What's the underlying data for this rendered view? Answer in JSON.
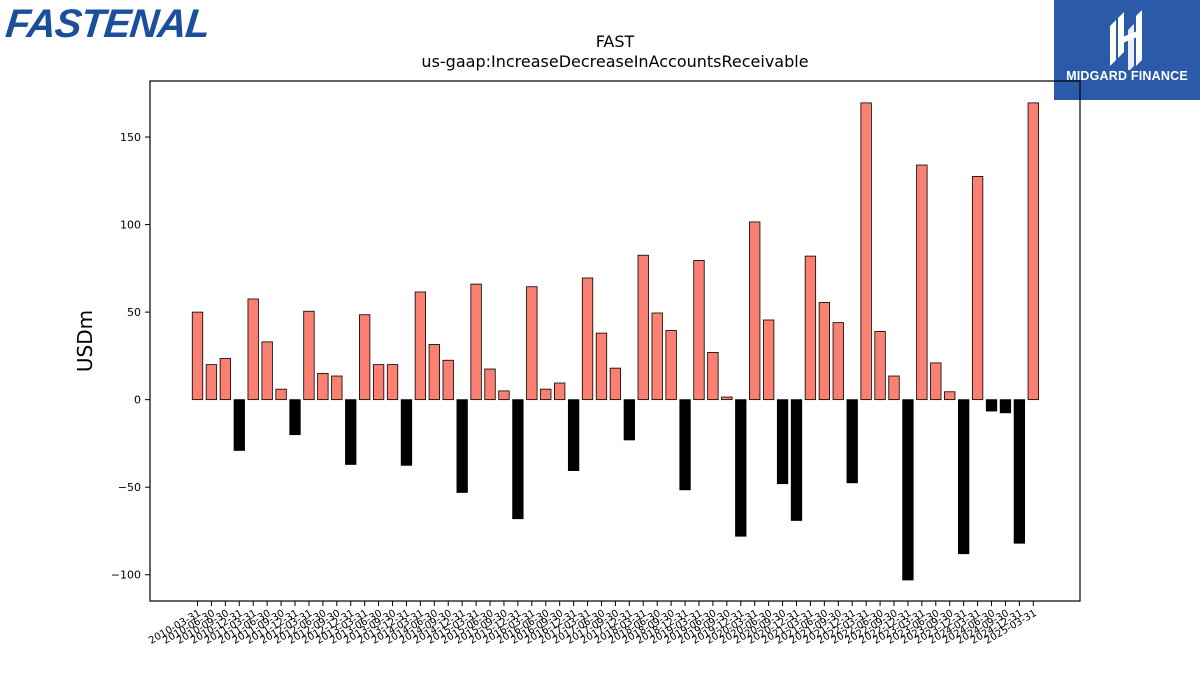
{
  "brand": {
    "left_logo_text": "FASTENAL",
    "left_logo_color": "#1b4f9c",
    "right_logo_text": "MIDGARD FINANCE",
    "right_logo_bg": "#2a5aa8"
  },
  "chart_data": {
    "type": "bar",
    "title": "FAST",
    "subtitle": "us-gaap:IncreaseDecreaseInAccountsReceivable",
    "ylabel": "USDm",
    "xlabel": "",
    "ylim": [
      -115,
      182
    ],
    "yticks": [
      -100,
      -50,
      0,
      50,
      100,
      150
    ],
    "positive_color": "#fa8072",
    "negative_color": "#000000",
    "categories": [
      "2010-03-31",
      "2010-06-30",
      "2010-09-30",
      "2010-12-31",
      "2011-03-31",
      "2011-06-30",
      "2011-09-30",
      "2011-12-31",
      "2012-03-31",
      "2012-06-30",
      "2012-09-30",
      "2012-12-31",
      "2013-03-31",
      "2013-06-30",
      "2013-09-30",
      "2013-12-31",
      "2014-03-31",
      "2014-06-30",
      "2014-09-30",
      "2014-12-31",
      "2015-03-31",
      "2015-06-30",
      "2015-09-30",
      "2015-12-31",
      "2016-03-31",
      "2016-06-30",
      "2016-09-30",
      "2016-12-31",
      "2017-03-31",
      "2017-06-30",
      "2017-09-30",
      "2017-12-31",
      "2018-03-31",
      "2018-06-30",
      "2018-09-30",
      "2018-12-31",
      "2019-03-31",
      "2019-06-30",
      "2019-09-30",
      "2019-12-31",
      "2020-03-31",
      "2020-06-30",
      "2020-09-30",
      "2020-12-31",
      "2021-03-31",
      "2021-06-30",
      "2021-09-30",
      "2021-12-31",
      "2022-03-31",
      "2022-06-30",
      "2022-09-30",
      "2022-12-31",
      "2023-03-31",
      "2023-06-30",
      "2023-09-30",
      "2023-12-31",
      "2024-03-31",
      "2024-06-30",
      "2024-09-30",
      "2024-12-31",
      "2025-03-31"
    ],
    "values": [
      50,
      20,
      23.5,
      -29,
      57.5,
      33,
      6,
      -20,
      50.5,
      15,
      13.5,
      -37,
      48.5,
      20,
      20,
      -37.5,
      61.5,
      31.5,
      22.5,
      -53,
      66,
      17.5,
      5,
      -68,
      64.5,
      6,
      9.5,
      -40.5,
      69.5,
      38,
      18,
      -23,
      82.5,
      49.5,
      39.5,
      -51.5,
      79.5,
      27,
      1.5,
      -78,
      101.5,
      45.5,
      -48,
      -69,
      82,
      55.5,
      44,
      -47.5,
      169.5,
      39,
      13.5,
      -103,
      134,
      21,
      4.5,
      -88,
      127.5,
      -6.5,
      -7.5,
      -82,
      169.5
    ]
  }
}
